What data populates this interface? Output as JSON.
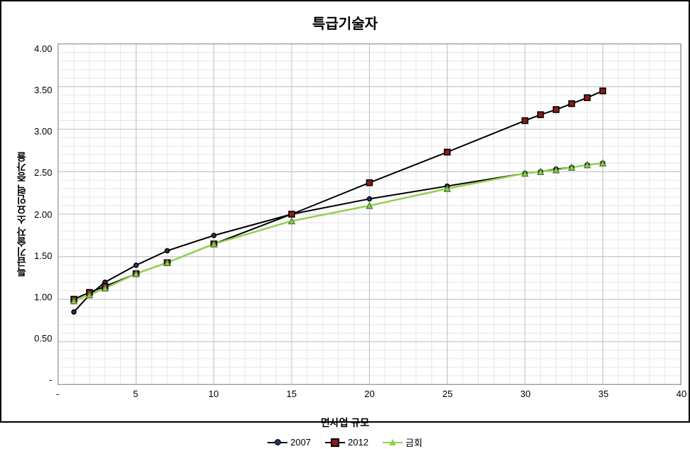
{
  "chart": {
    "type": "line",
    "title": "특급기술자",
    "title_fontsize": 20,
    "xlabel": "면사업 규모",
    "ylabel": "특급기술자  소요인력  증가율",
    "label_fontsize": 14,
    "tick_fontsize": 13,
    "background_color": "#ffffff",
    "border_color": "#000000",
    "plot_border_color": "#999999",
    "grid_major_color": "#bfbfbf",
    "grid_minor_color": "#e6e6e6",
    "xlim": [
      0,
      40
    ],
    "ylim": [
      0,
      4.0
    ],
    "xtick_step": 5,
    "xtick_minor": 1,
    "ytick_step": 0.5,
    "ytick_minor": 0.1,
    "xticks": [
      "-",
      "5",
      "10",
      "15",
      "20",
      "25",
      "30",
      "35",
      "40"
    ],
    "yticks": [
      "-",
      "0.50",
      "1.00",
      "1.50",
      "2.00",
      "2.50",
      "3.00",
      "3.50",
      "4.00"
    ],
    "series": [
      {
        "name": "2007",
        "marker": "circle",
        "line_color": "#000000",
        "marker_fill": "#1f3864",
        "marker_border": "#000000",
        "line_width": 2,
        "marker_size": 6,
        "x": [
          1,
          2,
          3,
          5,
          7,
          10,
          15,
          20,
          25,
          30,
          31,
          32,
          33,
          34,
          35
        ],
        "y": [
          0.85,
          1.05,
          1.2,
          1.4,
          1.57,
          1.75,
          2.0,
          2.18,
          2.33,
          2.48,
          2.5,
          2.53,
          2.55,
          2.58,
          2.6
        ]
      },
      {
        "name": "2012",
        "marker": "square",
        "line_color": "#000000",
        "marker_fill": "#8b1a1a",
        "marker_border": "#000000",
        "line_width": 2,
        "marker_size": 8,
        "x": [
          1,
          2,
          3,
          5,
          7,
          10,
          15,
          20,
          25,
          30,
          31,
          32,
          33,
          34,
          35
        ],
        "y": [
          1.0,
          1.08,
          1.15,
          1.3,
          1.43,
          1.65,
          2.0,
          2.37,
          2.73,
          3.1,
          3.17,
          3.23,
          3.3,
          3.37,
          3.45
        ]
      },
      {
        "name": "금회",
        "marker": "triangle",
        "line_color": "#92d050",
        "marker_fill": "#92d050",
        "marker_border": "#548235",
        "line_width": 2.5,
        "marker_size": 8,
        "x": [
          1,
          2,
          3,
          5,
          7,
          10,
          15,
          20,
          25,
          30,
          31,
          32,
          33,
          34,
          35
        ],
        "y": [
          0.98,
          1.05,
          1.13,
          1.3,
          1.43,
          1.65,
          1.92,
          2.1,
          2.3,
          2.48,
          2.5,
          2.52,
          2.55,
          2.58,
          2.6
        ]
      }
    ]
  }
}
